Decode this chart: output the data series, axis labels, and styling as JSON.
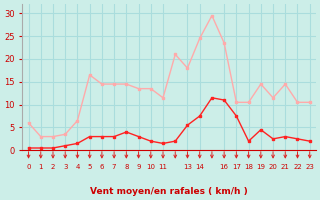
{
  "x_positions": [
    0,
    1,
    2,
    3,
    4,
    5,
    6,
    7,
    8,
    9,
    10,
    11,
    12,
    13,
    14,
    15,
    16,
    17,
    18,
    19,
    20,
    21,
    22,
    23
  ],
  "wind_avg": [
    0.5,
    0.5,
    0.5,
    1.0,
    1.5,
    3.0,
    3.0,
    3.0,
    4.0,
    3.0,
    2.0,
    1.5,
    2.0,
    5.5,
    7.5,
    11.5,
    11.0,
    7.5,
    2.0,
    4.5,
    2.5,
    3.0,
    2.5,
    2.0
  ],
  "wind_gust": [
    6.0,
    3.0,
    3.0,
    3.5,
    6.5,
    16.5,
    14.5,
    14.5,
    14.5,
    13.5,
    13.5,
    11.5,
    21.0,
    18.0,
    24.5,
    29.5,
    23.5,
    10.5,
    10.5,
    14.5,
    11.5,
    14.5,
    10.5,
    10.5
  ],
  "x_tick_positions": [
    0,
    1,
    2,
    3,
    4,
    5,
    6,
    7,
    8,
    9,
    10,
    11,
    13,
    14,
    16,
    17,
    18,
    19,
    20,
    21,
    22,
    23
  ],
  "x_tick_labels": [
    "0",
    "1",
    "2",
    "3",
    "4",
    "5",
    "6",
    "7",
    "8",
    "9",
    "10",
    "11",
    "13",
    "14",
    "16",
    "17",
    "18",
    "19",
    "20",
    "21",
    "22",
    "23"
  ],
  "avg_color": "#ff2222",
  "gust_color": "#ffaaaa",
  "bg_color": "#cceee8",
  "grid_color": "#aadddd",
  "xlabel": "Vent moyen/en rafales ( km/h )",
  "ylim": [
    0,
    32
  ],
  "yticks": [
    0,
    5,
    10,
    15,
    20,
    25,
    30
  ],
  "arrow_color": "#dd2222",
  "xlabel_color": "#cc0000",
  "tick_color": "#cc0000"
}
